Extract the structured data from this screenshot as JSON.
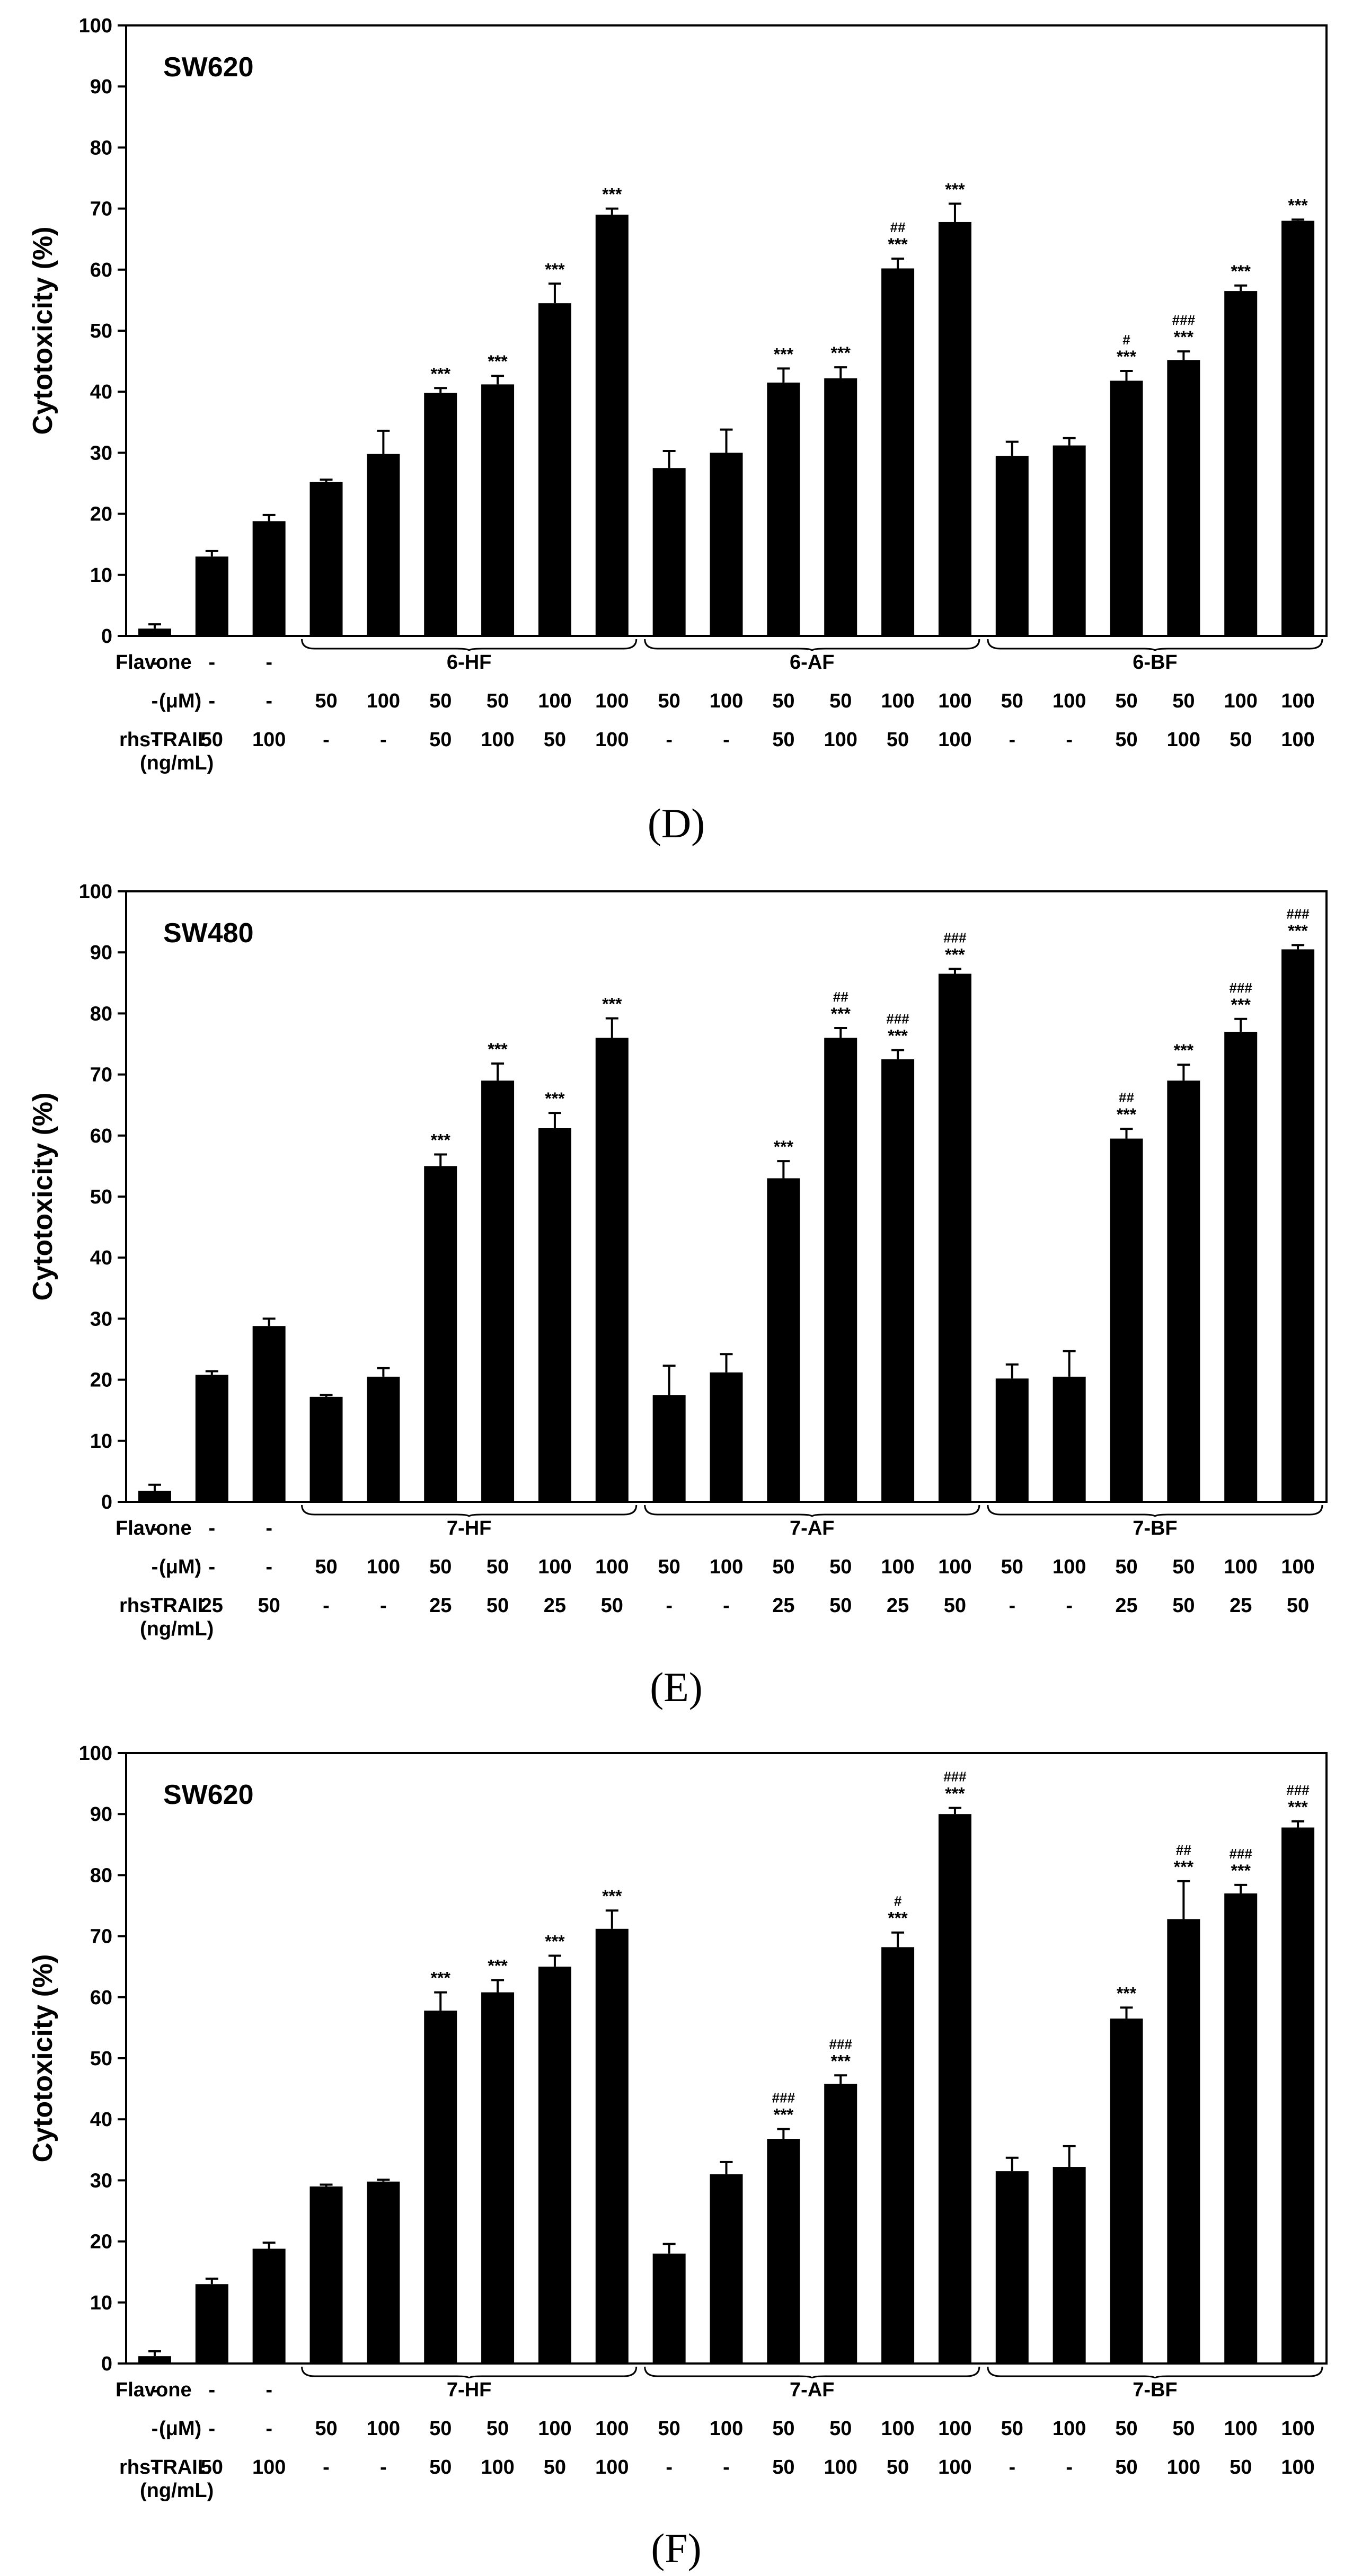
{
  "chart_data": [
    {
      "type": "bar",
      "panel_label": "(D)",
      "cell_line": "SW620",
      "ylabel": "Cytotoxicity (%)",
      "ylim": [
        0,
        100
      ],
      "yticks": [
        "0",
        "10",
        "20",
        "30",
        "40",
        "50",
        "60",
        "70",
        "80",
        "90",
        "100"
      ],
      "values": [
        1.2,
        13.0,
        18.8,
        25.2,
        29.8,
        39.8,
        41.2,
        54.5,
        69.0,
        27.5,
        30.0,
        41.5,
        42.2,
        60.2,
        67.8,
        29.5,
        31.2,
        41.8,
        45.2,
        56.5,
        68.0
      ],
      "errors": [
        0.7,
        0.9,
        1.0,
        0.4,
        3.8,
        0.8,
        1.4,
        3.2,
        1.0,
        2.8,
        3.8,
        2.3,
        1.8,
        1.6,
        3.0,
        2.3,
        1.2,
        1.6,
        1.4,
        0.9,
        0.2
      ],
      "stars": [
        "",
        "",
        "",
        "",
        "",
        "***",
        "***",
        "***",
        "***",
        "",
        "",
        "***",
        "***",
        "***",
        "***",
        "",
        "",
        "***",
        "***",
        "***",
        "***"
      ],
      "hashes": [
        "",
        "",
        "",
        "",
        "",
        "",
        "",
        "",
        "",
        "",
        "",
        "",
        "",
        "##",
        "",
        "",
        "",
        "#",
        "###",
        "",
        ""
      ],
      "groups": [
        "6-HF",
        "6-AF",
        "6-BF"
      ],
      "table": {
        "flavone_label": "Flavone",
        "flavone": [
          "-",
          "-",
          "-"
        ],
        "um_label": "(μM)",
        "um": [
          "-",
          "-",
          "-",
          "50",
          "100",
          "50",
          "50",
          "100",
          "100",
          "50",
          "100",
          "50",
          "50",
          "100",
          "100",
          "50",
          "100",
          "50",
          "50",
          "100",
          "100"
        ],
        "trail_label": "rhsTRAIL",
        "trail_unit": "(ng/mL)",
        "trail": [
          "-",
          "50",
          "100",
          "-",
          "-",
          "50",
          "100",
          "50",
          "100",
          "-",
          "-",
          "50",
          "100",
          "50",
          "100",
          "-",
          "-",
          "50",
          "100",
          "50",
          "100"
        ]
      }
    },
    {
      "type": "bar",
      "panel_label": "(E)",
      "cell_line": "SW480",
      "ylabel": "Cytotoxicity (%)",
      "ylim": [
        0,
        100
      ],
      "yticks": [
        "0",
        "10",
        "20",
        "30",
        "40",
        "50",
        "60",
        "70",
        "80",
        "90",
        "100"
      ],
      "values": [
        1.8,
        20.8,
        28.8,
        17.2,
        20.5,
        55.0,
        69.0,
        61.2,
        76.0,
        17.5,
        21.2,
        53.0,
        76.0,
        72.5,
        86.5,
        20.2,
        20.5,
        59.5,
        69.0,
        77.0,
        90.5
      ],
      "errors": [
        1.0,
        0.6,
        1.2,
        0.3,
        1.4,
        1.9,
        2.8,
        2.5,
        3.2,
        4.8,
        3.0,
        2.8,
        1.6,
        1.5,
        0.8,
        2.3,
        4.2,
        1.6,
        2.6,
        2.1,
        0.7
      ],
      "stars": [
        "",
        "",
        "",
        "",
        "",
        "***",
        "***",
        "***",
        "***",
        "",
        "",
        "***",
        "***",
        "***",
        "***",
        "",
        "",
        "***",
        "***",
        "***",
        "***"
      ],
      "hashes": [
        "",
        "",
        "",
        "",
        "",
        "",
        "",
        "",
        "",
        "",
        "",
        "",
        "##",
        "###",
        "###",
        "",
        "",
        "##",
        "",
        "###",
        "###"
      ],
      "groups": [
        "7-HF",
        "7-AF",
        "7-BF"
      ],
      "table": {
        "flavone_label": "Flavone",
        "flavone": [
          "-",
          "-",
          "-"
        ],
        "um_label": "(μM)",
        "um": [
          "-",
          "-",
          "-",
          "50",
          "100",
          "50",
          "50",
          "100",
          "100",
          "50",
          "100",
          "50",
          "50",
          "100",
          "100",
          "50",
          "100",
          "50",
          "50",
          "100",
          "100"
        ],
        "trail_label": "rhsTRAIL",
        "trail_unit": "(ng/mL)",
        "trail": [
          "-",
          "25",
          "50",
          "-",
          "-",
          "25",
          "50",
          "25",
          "50",
          "-",
          "-",
          "25",
          "50",
          "25",
          "50",
          "-",
          "-",
          "25",
          "50",
          "25",
          "50"
        ]
      }
    },
    {
      "type": "bar",
      "panel_label": "(F)",
      "cell_line": "SW620",
      "ylabel": "Cytotoxicity (%)",
      "ylim": [
        0,
        100
      ],
      "yticks": [
        "0",
        "10",
        "20",
        "30",
        "40",
        "50",
        "60",
        "70",
        "80",
        "90",
        "100"
      ],
      "values": [
        1.2,
        13.0,
        18.8,
        29.0,
        29.8,
        57.8,
        60.8,
        65.0,
        71.2,
        18.0,
        31.0,
        36.8,
        45.8,
        68.2,
        90.0,
        31.5,
        32.2,
        56.5,
        72.8,
        77.0,
        87.8
      ],
      "errors": [
        0.8,
        0.9,
        1.0,
        0.3,
        0.3,
        3.0,
        2.0,
        1.8,
        3.0,
        1.6,
        2.0,
        1.6,
        1.4,
        2.4,
        1.0,
        2.2,
        3.4,
        1.8,
        6.2,
        1.4,
        1.0
      ],
      "stars": [
        "",
        "",
        "",
        "",
        "",
        "***",
        "***",
        "***",
        "***",
        "",
        "",
        "***",
        "***",
        "***",
        "***",
        "",
        "",
        "***",
        "***",
        "***",
        "***"
      ],
      "hashes": [
        "",
        "",
        "",
        "",
        "",
        "",
        "",
        "",
        "",
        "",
        "",
        "###",
        "###",
        "#",
        "###",
        "",
        "",
        "",
        "##",
        "###",
        "###"
      ],
      "groups": [
        "7-HF",
        "7-AF",
        "7-BF"
      ],
      "table": {
        "flavone_label": "Flavone",
        "flavone": [
          "-",
          "-",
          "-"
        ],
        "um_label": "(μM)",
        "um": [
          "-",
          "-",
          "-",
          "50",
          "100",
          "50",
          "50",
          "100",
          "100",
          "50",
          "100",
          "50",
          "50",
          "100",
          "100",
          "50",
          "100",
          "50",
          "50",
          "100",
          "100"
        ],
        "trail_label": "rhsTRAIL",
        "trail_unit": "(ng/mL)",
        "trail": [
          "-",
          "50",
          "100",
          "-",
          "-",
          "50",
          "100",
          "50",
          "100",
          "-",
          "-",
          "50",
          "100",
          "50",
          "100",
          "-",
          "-",
          "50",
          "100",
          "50",
          "100"
        ]
      }
    }
  ]
}
